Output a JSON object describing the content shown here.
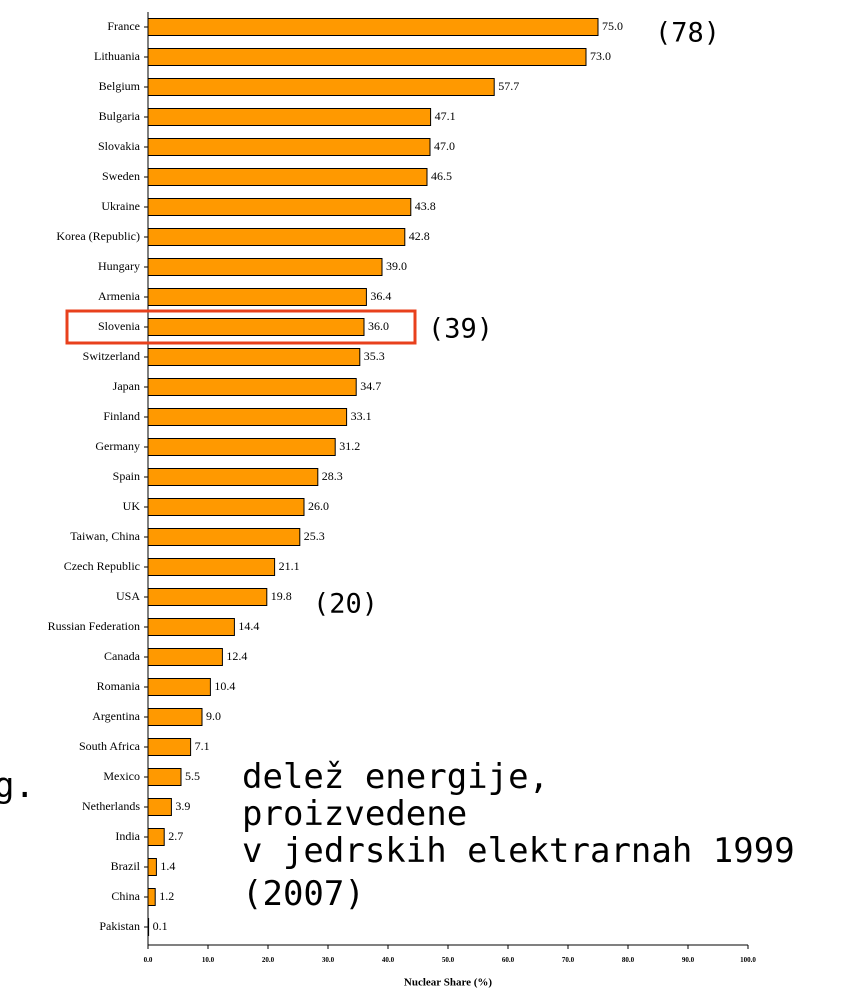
{
  "chart_data": {
    "type": "bar",
    "orientation": "horizontal",
    "x_label": "Nuclear Share (%)",
    "categories": [
      "France",
      "Lithuania",
      "Belgium",
      "Bulgaria",
      "Slovakia",
      "Sweden",
      "Ukraine",
      "Korea (Republic)",
      "Hungary",
      "Armenia",
      "Slovenia",
      "Switzerland",
      "Japan",
      "Finland",
      "Germany",
      "Spain",
      "UK",
      "Taiwan, China",
      "Czech Republic",
      "USA",
      "Russian Federation",
      "Canada",
      "Romania",
      "Argentina",
      "South Africa",
      "Mexico",
      "Netherlands",
      "India",
      "Brazil",
      "China",
      "Pakistan"
    ],
    "values": [
      75.0,
      73.0,
      57.7,
      47.1,
      47.0,
      46.5,
      43.8,
      42.8,
      39.0,
      36.4,
      36.0,
      35.3,
      34.7,
      33.1,
      31.2,
      28.3,
      26.0,
      25.3,
      21.1,
      19.8,
      14.4,
      12.4,
      10.4,
      9.0,
      7.1,
      5.5,
      3.9,
      2.7,
      1.4,
      1.2,
      0.1
    ],
    "value_labels": [
      "75.0",
      "73.0",
      "57.7",
      "47.1",
      "47.0",
      "46.5",
      "43.8",
      "42.8",
      "39.0",
      "36.4",
      "36.0",
      "35.3",
      "34.7",
      "33.1",
      "31.2",
      "28.3",
      "26.0",
      "25.3",
      "21.1",
      "19.8",
      "14.4",
      "12.4",
      "10.4",
      "9.0",
      "7.1",
      "5.5",
      "3.9",
      "2.7",
      "1.4",
      "1.2",
      "0.1"
    ],
    "color": "#ff9900",
    "xlim": [
      0,
      100
    ],
    "xticks": [
      {
        "value": 0,
        "label": "0.0"
      },
      {
        "value": 10,
        "label": "10.0"
      },
      {
        "value": 20,
        "label": "20.0"
      },
      {
        "value": 30,
        "label": "30.0"
      },
      {
        "value": 40,
        "label": "40.0"
      },
      {
        "value": 50,
        "label": "50.0"
      },
      {
        "value": 60,
        "label": "60.0"
      },
      {
        "value": 70,
        "label": "70.0"
      },
      {
        "value": 80,
        "label": "80.0"
      },
      {
        "value": 90,
        "label": "90.0"
      },
      {
        "value": 100,
        "label": "100.0"
      }
    ],
    "annotations": [
      "(78)",
      "(39)",
      "(20)",
      "g.",
      "delež energije,",
      "proizvedene",
      "v jedrskih elektrarnah 1999",
      "(2007)"
    ],
    "highlight": "Slovenia"
  }
}
